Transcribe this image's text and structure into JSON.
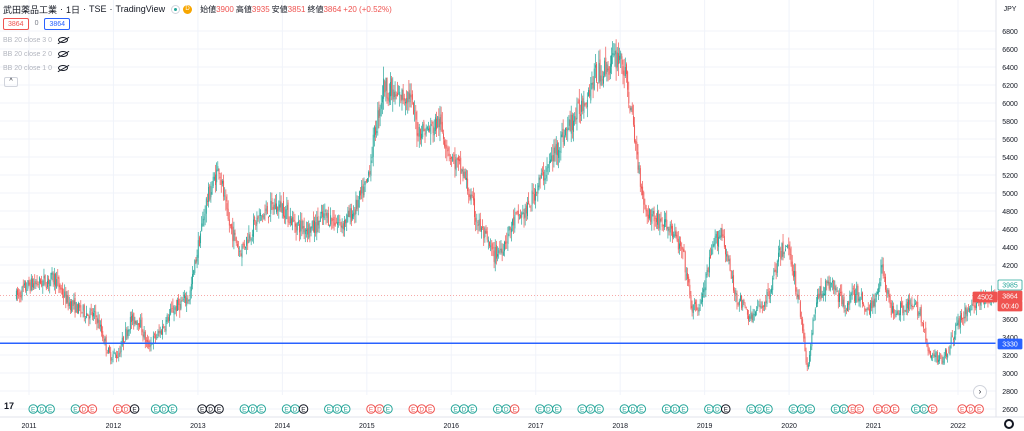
{
  "header": {
    "symbol": "武田薬品工業",
    "interval": "1日",
    "exchange": "TSE",
    "brand": "TradingView",
    "badge": "D",
    "open_label": "始値",
    "open": "3900",
    "high_label": "高値",
    "high": "3935",
    "low_label": "安値",
    "low": "3851",
    "close_label": "終値",
    "close": "3864",
    "change": "+20 (+0.52%)"
  },
  "price_boxes": {
    "sell": "3864",
    "spread": "0",
    "buy": "3864"
  },
  "indicators": [
    {
      "label": "BB 20 close 3 0"
    },
    {
      "label": "BB 20 close 2 0"
    },
    {
      "label": "BB 20 close 1 0"
    }
  ],
  "collapse_glyph": "^",
  "logo_text": "17",
  "currency": "JPY",
  "colors": {
    "up": "#26a69a",
    "down": "#ef5350",
    "hline": "#2962ff",
    "earnings_green": "#26a69a",
    "earnings_red": "#ef5350",
    "grid": "#f0f3fa"
  },
  "price_tags": {
    "current_top": "3985",
    "secondary": "4502",
    "current": "3864",
    "countdown": "00:40",
    "hline_value": "3330"
  },
  "chart_data": {
    "type": "candlestick",
    "title": "",
    "ylabel": "",
    "xlabel": "",
    "ylim": [
      2580,
      7000
    ],
    "y_ticks": [
      2600,
      2800,
      3000,
      3200,
      3400,
      3600,
      3800,
      4000,
      4200,
      4400,
      4600,
      4800,
      5000,
      5200,
      5400,
      5600,
      5800,
      6000,
      6200,
      6400,
      6600,
      6800
    ],
    "x_ticks": [
      "2011",
      "2012",
      "2013",
      "2014",
      "2015",
      "2016",
      "2017",
      "2018",
      "2019",
      "2020",
      "2021",
      "2022"
    ],
    "horizontal_line": 3330,
    "last_price": 3864,
    "grid": true,
    "price_path": [
      {
        "t": 2010.85,
        "p": 3850
      },
      {
        "t": 2011.0,
        "p": 3980
      },
      {
        "t": 2011.2,
        "p": 4020
      },
      {
        "t": 2011.3,
        "p": 4060
      },
      {
        "t": 2011.45,
        "p": 3800
      },
      {
        "t": 2011.6,
        "p": 3700
      },
      {
        "t": 2011.8,
        "p": 3620
      },
      {
        "t": 2011.95,
        "p": 3200
      },
      {
        "t": 2012.05,
        "p": 3200
      },
      {
        "t": 2012.2,
        "p": 3580
      },
      {
        "t": 2012.3,
        "p": 3600
      },
      {
        "t": 2012.4,
        "p": 3300
      },
      {
        "t": 2012.55,
        "p": 3450
      },
      {
        "t": 2012.7,
        "p": 3700
      },
      {
        "t": 2012.9,
        "p": 3850
      },
      {
        "t": 2013.0,
        "p": 4400
      },
      {
        "t": 2013.1,
        "p": 4900
      },
      {
        "t": 2013.25,
        "p": 5300
      },
      {
        "t": 2013.35,
        "p": 4700
      },
      {
        "t": 2013.5,
        "p": 4350
      },
      {
        "t": 2013.7,
        "p": 4700
      },
      {
        "t": 2013.9,
        "p": 4850
      },
      {
        "t": 2014.0,
        "p": 4850
      },
      {
        "t": 2014.15,
        "p": 4650
      },
      {
        "t": 2014.35,
        "p": 4600
      },
      {
        "t": 2014.5,
        "p": 4750
      },
      {
        "t": 2014.7,
        "p": 4650
      },
      {
        "t": 2014.85,
        "p": 4800
      },
      {
        "t": 2015.0,
        "p": 5100
      },
      {
        "t": 2015.1,
        "p": 5700
      },
      {
        "t": 2015.2,
        "p": 6200
      },
      {
        "t": 2015.35,
        "p": 6050
      },
      {
        "t": 2015.5,
        "p": 6100
      },
      {
        "t": 2015.6,
        "p": 5700
      },
      {
        "t": 2015.75,
        "p": 5700
      },
      {
        "t": 2015.85,
        "p": 5800
      },
      {
        "t": 2016.0,
        "p": 5400
      },
      {
        "t": 2016.15,
        "p": 5200
      },
      {
        "t": 2016.3,
        "p": 4700
      },
      {
        "t": 2016.5,
        "p": 4300
      },
      {
        "t": 2016.6,
        "p": 4400
      },
      {
        "t": 2016.75,
        "p": 4700
      },
      {
        "t": 2016.9,
        "p": 4800
      },
      {
        "t": 2017.0,
        "p": 5050
      },
      {
        "t": 2017.15,
        "p": 5300
      },
      {
        "t": 2017.3,
        "p": 5600
      },
      {
        "t": 2017.5,
        "p": 5900
      },
      {
        "t": 2017.7,
        "p": 6300
      },
      {
        "t": 2017.85,
        "p": 6400
      },
      {
        "t": 2018.0,
        "p": 6550
      },
      {
        "t": 2018.1,
        "p": 6100
      },
      {
        "t": 2018.2,
        "p": 5400
      },
      {
        "t": 2018.3,
        "p": 4800
      },
      {
        "t": 2018.45,
        "p": 4700
      },
      {
        "t": 2018.6,
        "p": 4600
      },
      {
        "t": 2018.75,
        "p": 4300
      },
      {
        "t": 2018.85,
        "p": 3700
      },
      {
        "t": 2018.95,
        "p": 3750
      },
      {
        "t": 2019.1,
        "p": 4400
      },
      {
        "t": 2019.2,
        "p": 4600
      },
      {
        "t": 2019.35,
        "p": 3900
      },
      {
        "t": 2019.55,
        "p": 3600
      },
      {
        "t": 2019.75,
        "p": 3850
      },
      {
        "t": 2019.9,
        "p": 4350
      },
      {
        "t": 2020.0,
        "p": 4400
      },
      {
        "t": 2020.15,
        "p": 3600
      },
      {
        "t": 2020.22,
        "p": 3000
      },
      {
        "t": 2020.32,
        "p": 3850
      },
      {
        "t": 2020.5,
        "p": 4000
      },
      {
        "t": 2020.65,
        "p": 3750
      },
      {
        "t": 2020.8,
        "p": 3900
      },
      {
        "t": 2020.92,
        "p": 3700
      },
      {
        "t": 2021.0,
        "p": 3750
      },
      {
        "t": 2021.1,
        "p": 4200
      },
      {
        "t": 2021.2,
        "p": 3700
      },
      {
        "t": 2021.4,
        "p": 3750
      },
      {
        "t": 2021.55,
        "p": 3700
      },
      {
        "t": 2021.65,
        "p": 3200
      },
      {
        "t": 2021.8,
        "p": 3150
      },
      {
        "t": 2021.9,
        "p": 3300
      },
      {
        "t": 2022.0,
        "p": 3550
      },
      {
        "t": 2022.15,
        "p": 3750
      },
      {
        "t": 2022.3,
        "p": 3800
      },
      {
        "t": 2022.45,
        "p": 3864
      }
    ]
  },
  "earnings_markers": [
    {
      "t": 2011.05,
      "kind": "E",
      "c": "green"
    },
    {
      "t": 2011.15,
      "kind": "D",
      "c": "green"
    },
    {
      "t": 2011.25,
      "kind": "E",
      "c": "green"
    },
    {
      "t": 2011.55,
      "kind": "E",
      "c": "green"
    },
    {
      "t": 2011.65,
      "kind": "D",
      "c": "red"
    },
    {
      "t": 2011.75,
      "kind": "E",
      "c": "red"
    },
    {
      "t": 2012.05,
      "kind": "E",
      "c": "red"
    },
    {
      "t": 2012.15,
      "kind": "D",
      "c": "red"
    },
    {
      "t": 2012.25,
      "kind": "E",
      "c": "dark"
    },
    {
      "t": 2012.5,
      "kind": "E",
      "c": "green"
    },
    {
      "t": 2012.6,
      "kind": "D",
      "c": "green"
    },
    {
      "t": 2012.7,
      "kind": "E",
      "c": "green"
    },
    {
      "t": 2013.05,
      "kind": "E",
      "c": "dark"
    },
    {
      "t": 2013.15,
      "kind": "D",
      "c": "dark"
    },
    {
      "t": 2013.25,
      "kind": "E",
      "c": "dark"
    },
    {
      "t": 2013.55,
      "kind": "E",
      "c": "green"
    },
    {
      "t": 2013.65,
      "kind": "D",
      "c": "green"
    },
    {
      "t": 2013.75,
      "kind": "E",
      "c": "green"
    },
    {
      "t": 2014.05,
      "kind": "E",
      "c": "green"
    },
    {
      "t": 2014.15,
      "kind": "D",
      "c": "green"
    },
    {
      "t": 2014.25,
      "kind": "E",
      "c": "dark"
    },
    {
      "t": 2014.55,
      "kind": "E",
      "c": "green"
    },
    {
      "t": 2014.65,
      "kind": "D",
      "c": "green"
    },
    {
      "t": 2014.75,
      "kind": "E",
      "c": "green"
    },
    {
      "t": 2015.05,
      "kind": "E",
      "c": "red"
    },
    {
      "t": 2015.15,
      "kind": "D",
      "c": "red"
    },
    {
      "t": 2015.25,
      "kind": "E",
      "c": "green"
    },
    {
      "t": 2015.55,
      "kind": "E",
      "c": "red"
    },
    {
      "t": 2015.65,
      "kind": "D",
      "c": "red"
    },
    {
      "t": 2015.75,
      "kind": "E",
      "c": "red"
    },
    {
      "t": 2016.05,
      "kind": "E",
      "c": "green"
    },
    {
      "t": 2016.15,
      "kind": "D",
      "c": "green"
    },
    {
      "t": 2016.25,
      "kind": "E",
      "c": "green"
    },
    {
      "t": 2016.55,
      "kind": "E",
      "c": "green"
    },
    {
      "t": 2016.65,
      "kind": "D",
      "c": "green"
    },
    {
      "t": 2016.75,
      "kind": "E",
      "c": "red"
    },
    {
      "t": 2017.05,
      "kind": "E",
      "c": "green"
    },
    {
      "t": 2017.15,
      "kind": "D",
      "c": "green"
    },
    {
      "t": 2017.25,
      "kind": "E",
      "c": "green"
    },
    {
      "t": 2017.55,
      "kind": "E",
      "c": "green"
    },
    {
      "t": 2017.65,
      "kind": "D",
      "c": "green"
    },
    {
      "t": 2017.75,
      "kind": "E",
      "c": "green"
    },
    {
      "t": 2018.05,
      "kind": "E",
      "c": "green"
    },
    {
      "t": 2018.15,
      "kind": "D",
      "c": "green"
    },
    {
      "t": 2018.25,
      "kind": "E",
      "c": "green"
    },
    {
      "t": 2018.55,
      "kind": "E",
      "c": "green"
    },
    {
      "t": 2018.65,
      "kind": "D",
      "c": "green"
    },
    {
      "t": 2018.75,
      "kind": "E",
      "c": "green"
    },
    {
      "t": 2019.05,
      "kind": "E",
      "c": "green"
    },
    {
      "t": 2019.15,
      "kind": "D",
      "c": "green"
    },
    {
      "t": 2019.25,
      "kind": "E",
      "c": "dark"
    },
    {
      "t": 2019.55,
      "kind": "E",
      "c": "green"
    },
    {
      "t": 2019.65,
      "kind": "D",
      "c": "green"
    },
    {
      "t": 2019.75,
      "kind": "E",
      "c": "green"
    },
    {
      "t": 2020.05,
      "kind": "E",
      "c": "green"
    },
    {
      "t": 2020.15,
      "kind": "D",
      "c": "green"
    },
    {
      "t": 2020.25,
      "kind": "E",
      "c": "green"
    },
    {
      "t": 2020.55,
      "kind": "E",
      "c": "green"
    },
    {
      "t": 2020.65,
      "kind": "D",
      "c": "green"
    },
    {
      "t": 2020.75,
      "kind": "E",
      "c": "red"
    },
    {
      "t": 2020.83,
      "kind": "E",
      "c": "red"
    },
    {
      "t": 2021.05,
      "kind": "E",
      "c": "red"
    },
    {
      "t": 2021.15,
      "kind": "D",
      "c": "red"
    },
    {
      "t": 2021.25,
      "kind": "E",
      "c": "red"
    },
    {
      "t": 2021.5,
      "kind": "E",
      "c": "green"
    },
    {
      "t": 2021.6,
      "kind": "D",
      "c": "green"
    },
    {
      "t": 2021.7,
      "kind": "E",
      "c": "red"
    },
    {
      "t": 2022.05,
      "kind": "E",
      "c": "red"
    },
    {
      "t": 2022.15,
      "kind": "D",
      "c": "red"
    },
    {
      "t": 2022.25,
      "kind": "E",
      "c": "red"
    }
  ]
}
